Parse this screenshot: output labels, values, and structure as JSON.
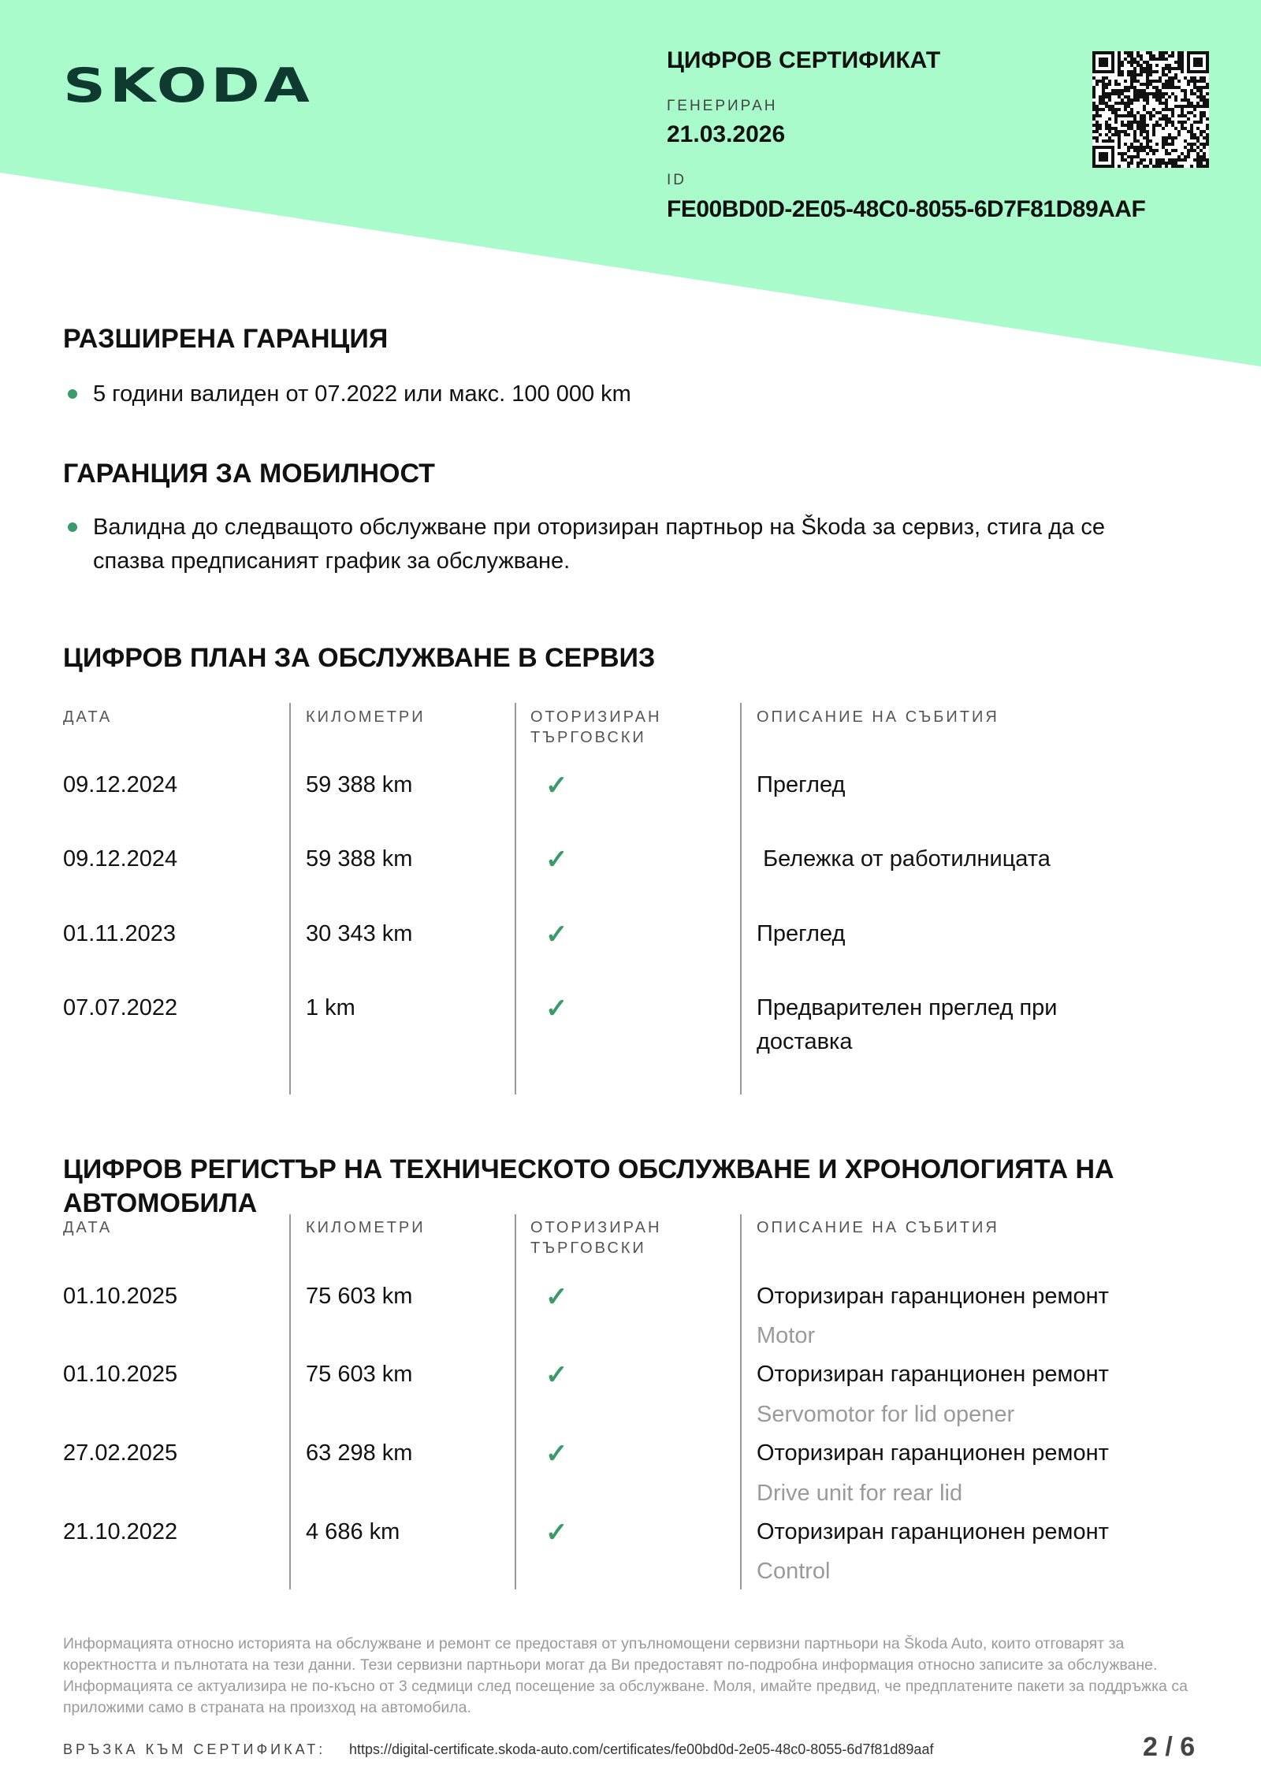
{
  "header": {
    "logo": "SKODA",
    "title": "ЦИФРОВ СЕРТИФИКАТ",
    "generated_label": "ГЕНЕРИРАН",
    "generated_value": "21.03.2026",
    "id_label": "ID",
    "id_value": "FE00BD0D-2E05-48C0-8055-6D7F81D89AAF",
    "brand_color": "#a9fbcc"
  },
  "extended_warranty": {
    "title": "РАЗШИРЕНА ГАРАНЦИЯ",
    "items": [
      "5 години валиден от 07.2022 или макс. 100 000 km"
    ]
  },
  "mobility_warranty": {
    "title": "ГАРАНЦИЯ ЗА МОБИЛНОСТ",
    "items": [
      "Валидна до следващото обслужване при оторизиран партньор на Škoda за сервиз, стига да се спазва предписаният график за обслужване."
    ]
  },
  "service_plan": {
    "title": "ЦИФРОВ ПЛАН ЗА ОБСЛУЖВАНЕ В СЕРВИЗ",
    "columns": [
      "ДАТА",
      "КИЛОМЕТРИ",
      "ОТОРИЗИРАН ТЪРГОВСКИ",
      "ОПИСАНИЕ НА СЪБИТИЯ"
    ],
    "rows": [
      {
        "date": "09.12.2024",
        "km": "59 388 km",
        "authorized": true,
        "desc": "Преглед"
      },
      {
        "date": "09.12.2024",
        "km": "59 388 km",
        "authorized": true,
        "desc": " Бележка от работилницата"
      },
      {
        "date": "01.11.2023",
        "km": "30 343 km",
        "authorized": true,
        "desc": "Преглед"
      },
      {
        "date": "07.07.2022",
        "km": "1 km",
        "authorized": true,
        "desc": "Предварителен преглед при доставка"
      }
    ]
  },
  "history": {
    "title_line1": "ЦИФРОВ РЕГИСТЪР НА ТЕХНИЧЕСКОТО ОБСЛУЖВАНЕ И ХРОНОЛОГИЯТА НА",
    "title_line2": "АВТОМОБИЛА",
    "columns": [
      "ДАТА",
      "КИЛОМЕТРИ",
      "ОТОРИЗИРАН ТЪРГОВСКИ",
      "ОПИСАНИЕ НА СЪБИТИЯ"
    ],
    "rows": [
      {
        "date": "01.10.2025",
        "km": "75 603 km",
        "authorized": true,
        "desc": "Оторизиран гаранционен ремонт",
        "detail": "Motor"
      },
      {
        "date": "01.10.2025",
        "km": "75 603 km",
        "authorized": true,
        "desc": "Оторизиран гаранционен ремонт",
        "detail": "Servomotor for lid opener"
      },
      {
        "date": "27.02.2025",
        "km": "63 298 km",
        "authorized": true,
        "desc": "Оторизиран гаранционен ремонт",
        "detail": "Drive unit for rear lid"
      },
      {
        "date": "21.10.2022",
        "km": "4 686 km",
        "authorized": true,
        "desc": "Оторизиран гаранционен ремонт",
        "detail": "Control"
      }
    ]
  },
  "footer": {
    "disclaimer": "Информацията относно историята на обслужване и ремонт се предоставя от упълномощени сервизни партньори на Škoda Auto, които отговарят за коректността и пълнотата на тези данни. Тези сервизни партньори могат да Ви предоставят по-подробна информация относно записите за обслужване. Информацията се актуализира не по-късно от 3 седмици след посещение за обслужване. Моля, имайте предвид, че предплатените пакети за поддръжка са приложими само в страната на произход на автомобила.",
    "link_label": "ВРЪЗКА КЪМ СЕРТИФИКАТ:",
    "link": "https://digital-certificate.skoda-auto.com/certificates/fe00bd0d-2e05-48c0-8055-6d7f81d89aaf",
    "page": "2 / 6"
  },
  "icons": {
    "check": "check-icon",
    "qr": "qr-code",
    "bullet": "bullet-dot"
  },
  "colors": {
    "accent_green": "#3a9a6a"
  }
}
